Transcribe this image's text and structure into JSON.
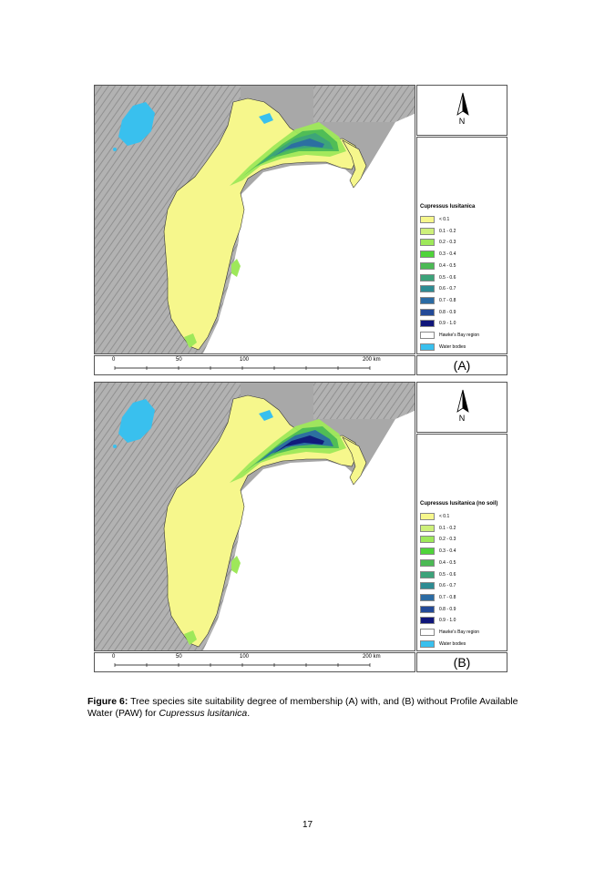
{
  "panels": [
    {
      "id": "A",
      "label": "(A)",
      "legend_title": "Cupressus lusitanica",
      "north": "N",
      "high_suitability": "medium"
    },
    {
      "id": "B",
      "label": "(B)",
      "legend_title": "Cupressus lusitanica (no soil)",
      "north": "N",
      "high_suitability": "high"
    }
  ],
  "legend_items": [
    {
      "label": "< 0.1",
      "color": "#f6f78c"
    },
    {
      "label": "0.1 - 0.2",
      "color": "#cdf07a"
    },
    {
      "label": "0.2 - 0.3",
      "color": "#9ee85a"
    },
    {
      "label": "0.3 - 0.4",
      "color": "#4fd43a"
    },
    {
      "label": "0.4 - 0.5",
      "color": "#4cba55"
    },
    {
      "label": "0.5 - 0.6",
      "color": "#3ca37a"
    },
    {
      "label": "0.6 - 0.7",
      "color": "#2e8c93"
    },
    {
      "label": "0.7 - 0.8",
      "color": "#2b6ba3"
    },
    {
      "label": "0.8 - 0.9",
      "color": "#234a97"
    },
    {
      "label": "0.9 - 1.0",
      "color": "#10167a"
    },
    {
      "label": "Hawke's Bay region",
      "color": "#ffffff"
    },
    {
      "label": "Water bodies",
      "color": "#39c0ee"
    }
  ],
  "scale": {
    "ticks": [
      "0",
      "50",
      "100",
      "200 km"
    ]
  },
  "caption": {
    "label": "Figure 6:",
    "text": " Tree species site suitability degree of membership (A) with, and (B) without Profile Available Water (PAW) for ",
    "species": "Cupressus lusitanica",
    "end": "."
  },
  "page_number": "17"
}
